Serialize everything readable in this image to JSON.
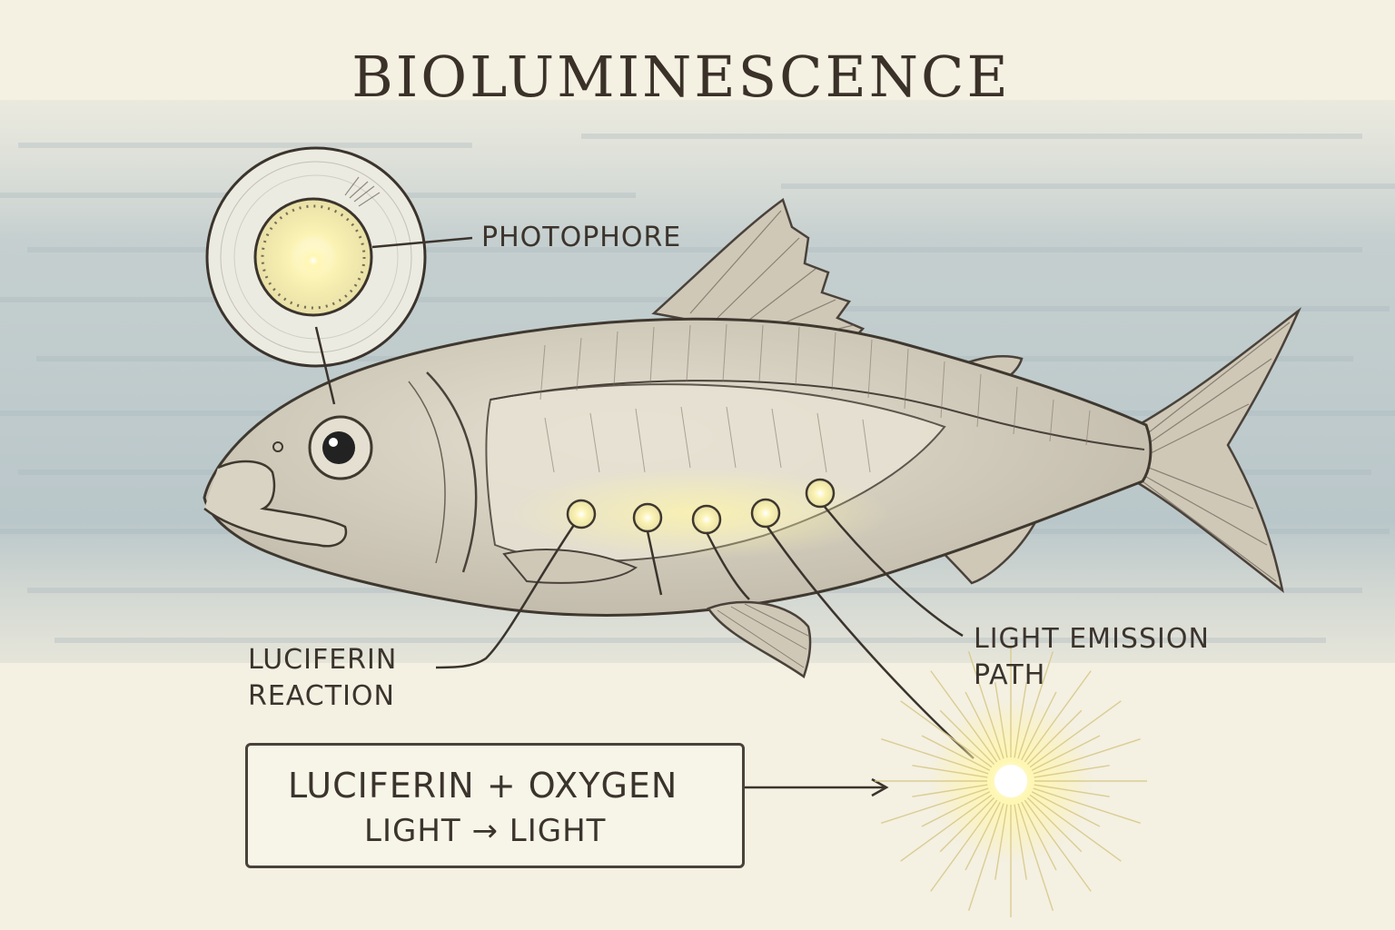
{
  "title": "BIOLUMINESCENCE",
  "labels": {
    "photophore": "PHOTOPHORE",
    "luciferin_reaction_line1": "LUCIFERIN",
    "luciferin_reaction_line2": "REACTION",
    "light_emission_line1": "LIGHT EMISSION",
    "light_emission_line2": "PATH"
  },
  "equation": {
    "line1": "LUCIFERIN + OXYGEN",
    "line2": "LIGHT → LIGHT"
  },
  "colors": {
    "ink": "#3b342d",
    "water": "#b9c7cb",
    "paper": "#f4f0e2",
    "glow": "#fff6a8",
    "fish_body": "#d8d2c2"
  }
}
